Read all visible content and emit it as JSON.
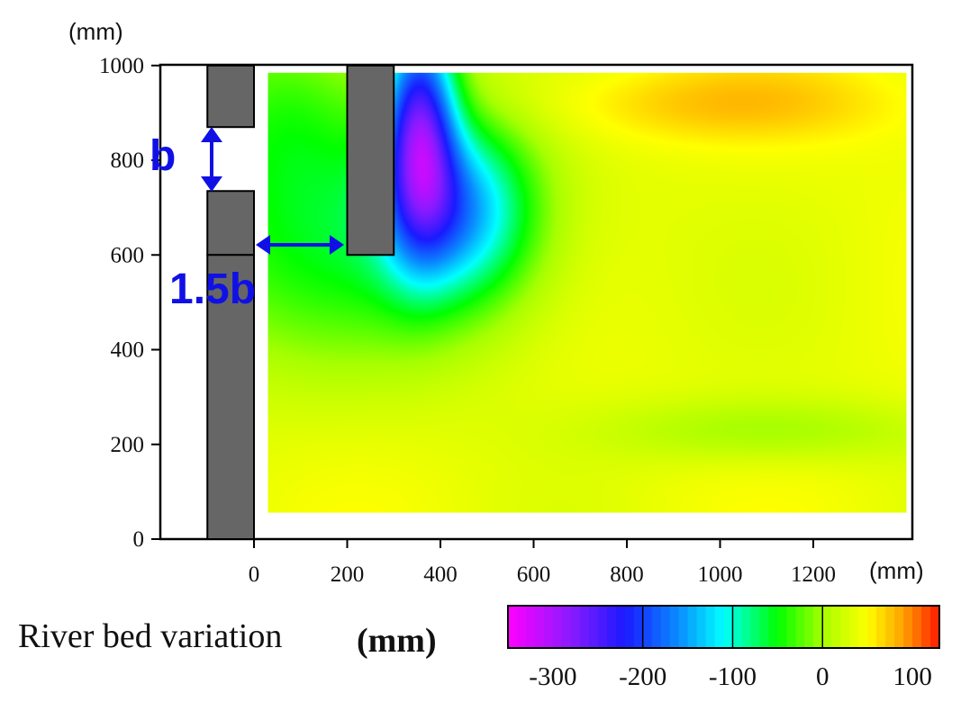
{
  "chart_data": {
    "type": "heatmap",
    "title": "",
    "x_unit": "(mm)",
    "y_unit": "(mm)",
    "xlim": [
      -200,
      1400
    ],
    "ylim": [
      0,
      1000
    ],
    "x_ticks": [
      "0",
      "200",
      "400",
      "600",
      "800",
      "1000",
      "1200"
    ],
    "y_ticks": [
      "0",
      "200",
      "400",
      "600",
      "800",
      "1000"
    ],
    "grid": false,
    "measured_area": {
      "x": [
        30,
        1400
      ],
      "y": [
        55,
        985
      ]
    },
    "background_level_mm": 40,
    "structures": [
      {
        "name": "wall-top",
        "x": [
          -100,
          0
        ],
        "y": [
          870,
          1000
        ]
      },
      {
        "name": "wall-middle",
        "x": [
          -100,
          0
        ],
        "y": [
          600,
          735
        ]
      },
      {
        "name": "wall-bottom",
        "x": [
          -100,
          0
        ],
        "y": [
          0,
          600
        ]
      },
      {
        "name": "groyne",
        "x": [
          200,
          300
        ],
        "y": [
          600,
          1000
        ]
      }
    ],
    "scour_features": [
      {
        "x": 355,
        "y": 880,
        "value_mm": -230,
        "sx": 55,
        "sy": 170
      },
      {
        "x": 440,
        "y": 700,
        "value_mm": -130,
        "sx": 110,
        "sy": 130
      },
      {
        "x": 150,
        "y": 620,
        "value_mm": -60,
        "sx": 320,
        "sy": 190
      },
      {
        "x": 80,
        "y": 920,
        "value_mm": -40,
        "sx": 150,
        "sy": 150
      },
      {
        "x": 1000,
        "y": 920,
        "value_mm": 35,
        "sx": 280,
        "sy": 60
      },
      {
        "x": 1100,
        "y": 230,
        "value_mm": -20,
        "sx": 250,
        "sy": 50
      }
    ],
    "annotations": [
      {
        "text": "b",
        "meaning": "opening between wall blocks"
      },
      {
        "text": "1.5b",
        "meaning": "distance from wall to groyne"
      }
    ],
    "colorbar": {
      "label": "River bed variation",
      "unit": "(mm)",
      "range": [
        -350,
        130
      ],
      "ticks": [
        "-300",
        "-200",
        "-100",
        "0",
        "100"
      ],
      "tick_values": [
        -300,
        -200,
        -100,
        0,
        100
      ],
      "divider_values": [
        -200,
        -100,
        0
      ],
      "colors": [
        {
          "value": -350,
          "color": "#ff00ff"
        },
        {
          "value": -280,
          "color": "#8a1aff"
        },
        {
          "value": -220,
          "color": "#1a1aff"
        },
        {
          "value": -160,
          "color": "#0a8cff"
        },
        {
          "value": -110,
          "color": "#00ffff"
        },
        {
          "value": -50,
          "color": "#00ff00"
        },
        {
          "value": 0,
          "color": "#a6ff00"
        },
        {
          "value": 50,
          "color": "#ffff00"
        },
        {
          "value": 90,
          "color": "#ffa000"
        },
        {
          "value": 130,
          "color": "#ff1a00"
        }
      ]
    }
  },
  "colors": {
    "structure": "#666666",
    "annotation": "#1010e6"
  }
}
